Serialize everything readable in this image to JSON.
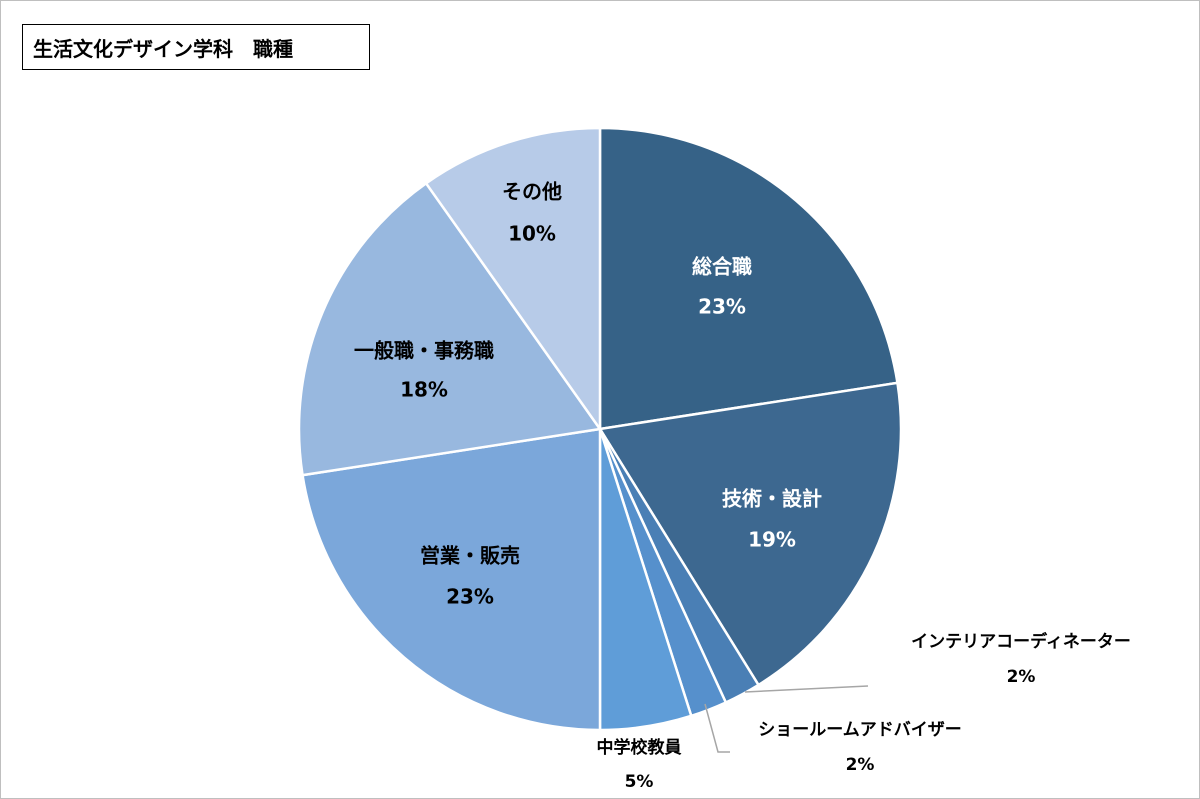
{
  "chart_data": {
    "type": "pie",
    "title": "生活文化デザイン学科　職種",
    "start_angle_deg": 0,
    "direction": "clockwise",
    "slices": [
      {
        "label": "総合職",
        "value": 23,
        "pct": "23%",
        "color": "#366287"
      },
      {
        "label": "技術・設計",
        "value": 19,
        "pct": "19%",
        "color": "#3d6890"
      },
      {
        "label": "インテリアコーディネーター",
        "value": 2,
        "pct": "2%",
        "color": "#4a7fb5"
      },
      {
        "label": "ショールームアドバイザー",
        "value": 2,
        "pct": "2%",
        "color": "#5690cc"
      },
      {
        "label": "中学校教員",
        "value": 5,
        "pct": "5%",
        "color": "#5f9dd8"
      },
      {
        "label": "営業・販売",
        "value": 23,
        "pct": "23%",
        "color": "#7ba7da"
      },
      {
        "label": "一般職・事務職",
        "value": 18,
        "pct": "18%",
        "color": "#98b8df"
      },
      {
        "label": "その他",
        "value": 10,
        "pct": "10%",
        "color": "#b7cbe8"
      }
    ]
  }
}
